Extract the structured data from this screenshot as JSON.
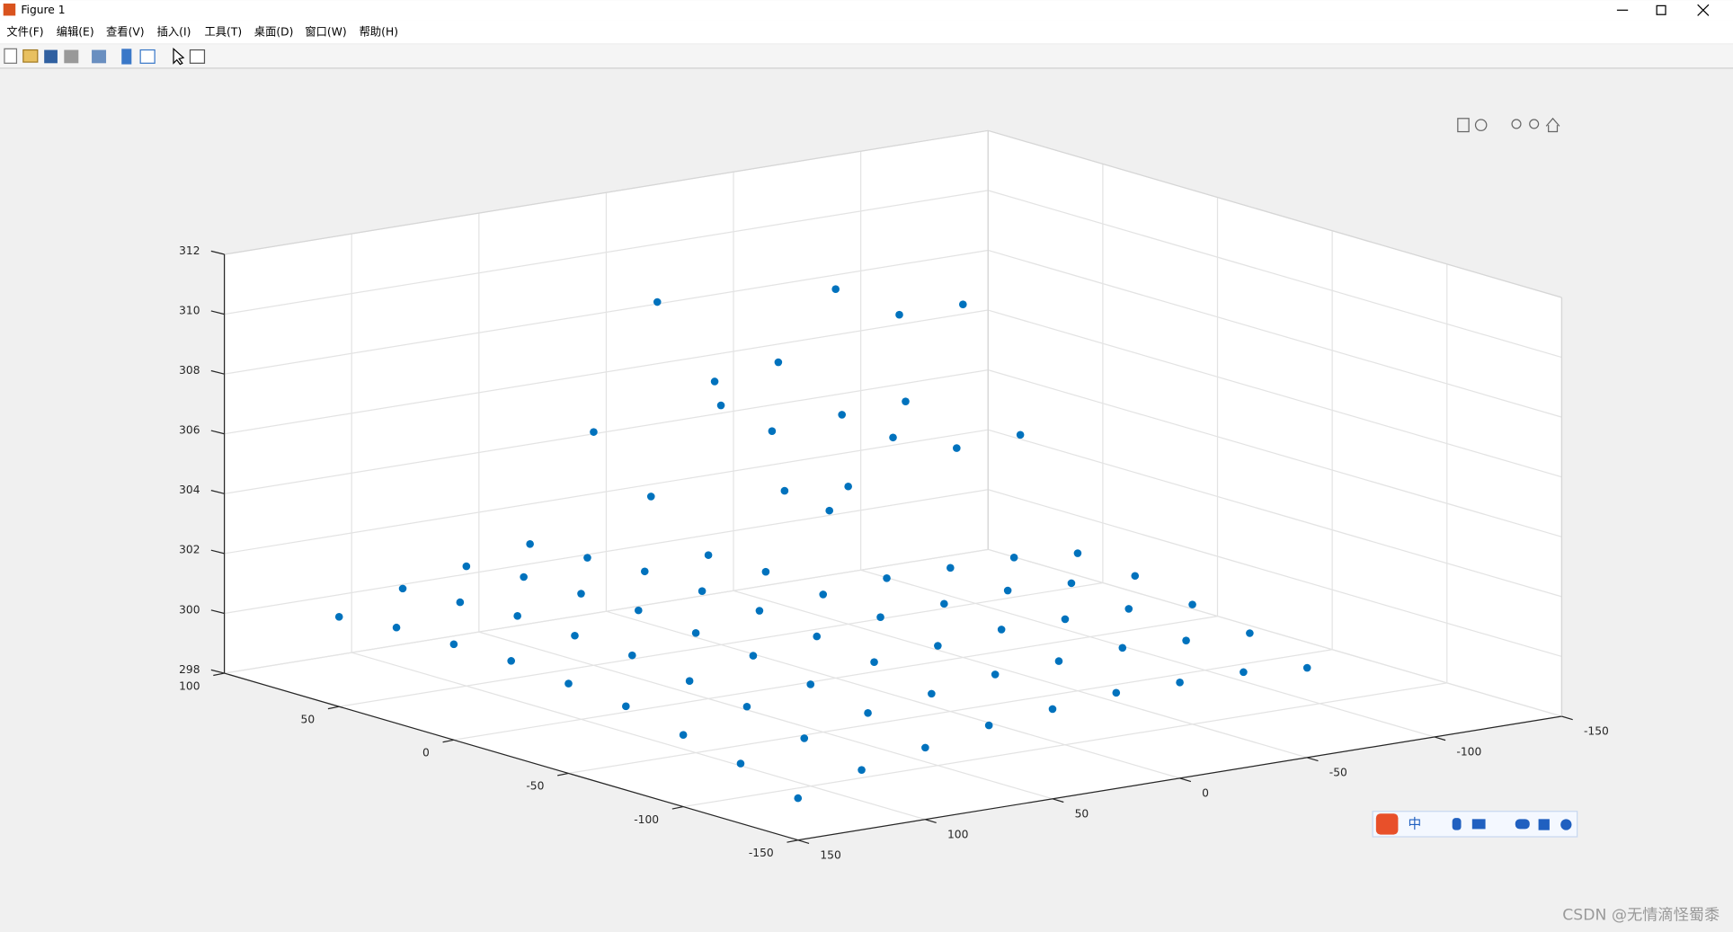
{
  "window": {
    "title": "Figure 1",
    "menus": [
      "文件(F)",
      "编辑(E)",
      "查看(V)",
      "插入(I)",
      "工具(T)",
      "桌面(D)",
      "窗口(W)",
      "帮助(H)"
    ],
    "ime": "中",
    "watermark": "CSDN @无情滴怪蜀黍"
  },
  "chart_data": {
    "type": "scatter3",
    "color": "#0072bd",
    "grid": true,
    "xlim": [
      -150,
      150
    ],
    "xticks": [
      -150,
      -100,
      -50,
      0,
      50,
      100,
      150
    ],
    "ylim": [
      -150,
      100
    ],
    "yticks": [
      -150,
      -100,
      -50,
      0,
      50,
      100
    ],
    "zlim": [
      298,
      312
    ],
    "zticks": [
      298,
      300,
      302,
      304,
      306,
      308,
      310,
      312
    ],
    "x": [
      150,
      150,
      150,
      150,
      150,
      150,
      150,
      150,
      150,
      125,
      125,
      125,
      125,
      125,
      125,
      125,
      125,
      125,
      100,
      100,
      100,
      100,
      100,
      100,
      100,
      100,
      100,
      75,
      75,
      75,
      75,
      75,
      75,
      75,
      75,
      75,
      50,
      50,
      50,
      50,
      50,
      50,
      50,
      50,
      50,
      25,
      25,
      25,
      25,
      25,
      25,
      25,
      25,
      25,
      0,
      0,
      0,
      0,
      0,
      0,
      0,
      0,
      0,
      -25,
      -25,
      -25,
      -25,
      -25,
      -25,
      -25,
      -25,
      -25,
      -50,
      -50,
      -50,
      -50,
      -50,
      -50,
      -50,
      -50,
      -50
    ],
    "y": [
      -150,
      -125,
      -100,
      -75,
      -50,
      -25,
      0,
      25,
      50,
      -150,
      -125,
      -100,
      -75,
      -50,
      -25,
      0,
      25,
      50,
      -150,
      -125,
      -100,
      -75,
      -50,
      -25,
      0,
      25,
      50,
      -150,
      -125,
      -100,
      -75,
      -50,
      -25,
      0,
      25,
      50,
      -150,
      -125,
      -100,
      -75,
      -50,
      -25,
      0,
      25,
      50,
      -150,
      -125,
      -100,
      -75,
      -50,
      -25,
      0,
      25,
      50,
      -150,
      -125,
      -100,
      -75,
      -50,
      -25,
      0,
      25,
      50,
      -150,
      -125,
      -100,
      -75,
      -50,
      -25,
      0,
      25,
      50,
      -150,
      -125,
      -100,
      -75,
      -50,
      -25,
      0,
      25,
      50
    ],
    "z": [
      299.4,
      300.0,
      300.4,
      300.8,
      301.0,
      301.2,
      301.2,
      301.2,
      301.0,
      300.0,
      300.5,
      301.0,
      301.3,
      301.6,
      301.7,
      301.8,
      301.7,
      301.6,
      300.4,
      301.0,
      301.4,
      301.8,
      302.0,
      302.2,
      302.2,
      302.2,
      302.0,
      300.8,
      301.3,
      301.8,
      302.1,
      302.4,
      302.5,
      302.6,
      302.5,
      302.4,
      301.0,
      301.6,
      302.0,
      302.4,
      302.6,
      302.8,
      302.8,
      304.2,
      305.8,
      301.2,
      301.7,
      302.2,
      302.5,
      302.8,
      304.5,
      306.6,
      307.7,
      309.8,
      301.2,
      301.8,
      302.2,
      302.6,
      302.8,
      306.6,
      311.0,
      308.0,
      306.0,
      301.2,
      301.7,
      302.2,
      302.5,
      302.8,
      305.9,
      309.8,
      305.9,
      302.8,
      301.0,
      301.6,
      302.0,
      302.4,
      302.6,
      306.0,
      309.8,
      306.0,
      302.6
    ]
  }
}
